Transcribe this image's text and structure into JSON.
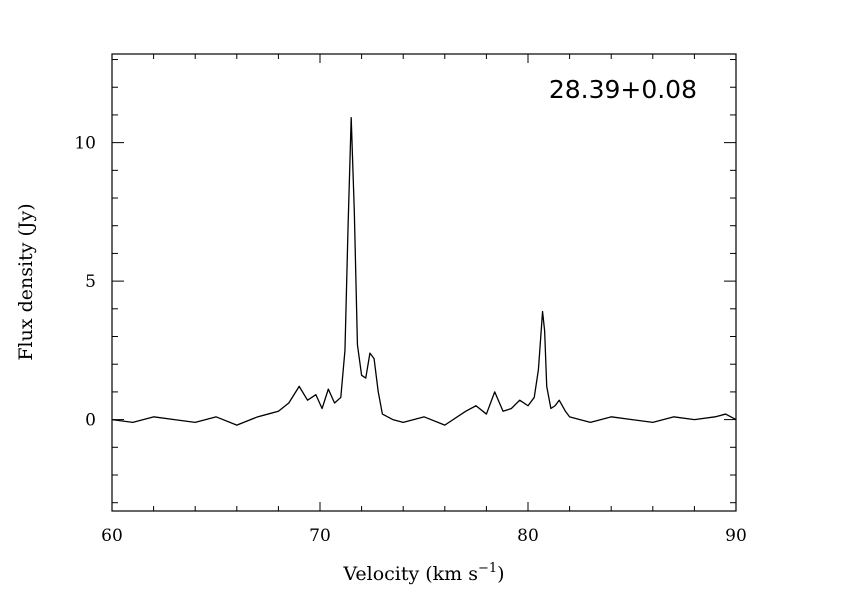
{
  "chart_data": {
    "type": "line",
    "annotation": "28.39+0.08",
    "xlabel": "Velocity (km s",
    "xlabel_sup": "−1",
    "xlabel_end": ")",
    "ylabel": "Flux density (Jy)",
    "xlim": [
      60,
      90
    ],
    "ylim": [
      -3.3,
      13.2
    ],
    "x_ticks": [
      60,
      70,
      80,
      90
    ],
    "x_tick_labels": [
      "60",
      "70",
      "80",
      "90"
    ],
    "y_ticks": [
      0,
      5,
      10
    ],
    "y_tick_labels": [
      "0",
      "5",
      "10"
    ],
    "x_minor_step": 2,
    "y_minor_step": 1,
    "grid": false,
    "series": [
      {
        "x": [
          60.0,
          61.0,
          62.0,
          63.0,
          64.0,
          65.0,
          66.0,
          67.0,
          67.5,
          68.0,
          68.5,
          69.0,
          69.4,
          69.8,
          70.1,
          70.4,
          70.7,
          71.0,
          71.2,
          71.35,
          71.5,
          71.65,
          71.8,
          72.0,
          72.2,
          72.4,
          72.6,
          72.8,
          73.0,
          73.5,
          74.0,
          75.0,
          76.0,
          77.0,
          77.5,
          78.0,
          78.4,
          78.8,
          79.2,
          79.6,
          80.0,
          80.3,
          80.5,
          80.7,
          80.8,
          80.9,
          81.1,
          81.3,
          81.5,
          81.8,
          82.0,
          83.0,
          84.0,
          85.0,
          86.0,
          87.0,
          88.0,
          89.0,
          89.5,
          90.0
        ],
        "y": [
          0.0,
          -0.1,
          0.1,
          0.0,
          -0.1,
          0.1,
          -0.2,
          0.1,
          0.2,
          0.3,
          0.6,
          1.2,
          0.7,
          0.9,
          0.4,
          1.1,
          0.6,
          0.8,
          2.5,
          7.0,
          10.9,
          7.5,
          2.7,
          1.6,
          1.5,
          2.4,
          2.2,
          1.0,
          0.2,
          0.0,
          -0.1,
          0.1,
          -0.2,
          0.3,
          0.5,
          0.2,
          1.0,
          0.3,
          0.4,
          0.7,
          0.5,
          0.8,
          1.8,
          3.9,
          3.2,
          1.2,
          0.4,
          0.5,
          0.7,
          0.3,
          0.1,
          -0.1,
          0.1,
          0.0,
          -0.1,
          0.1,
          0.0,
          0.1,
          0.2,
          0.0
        ]
      }
    ]
  }
}
